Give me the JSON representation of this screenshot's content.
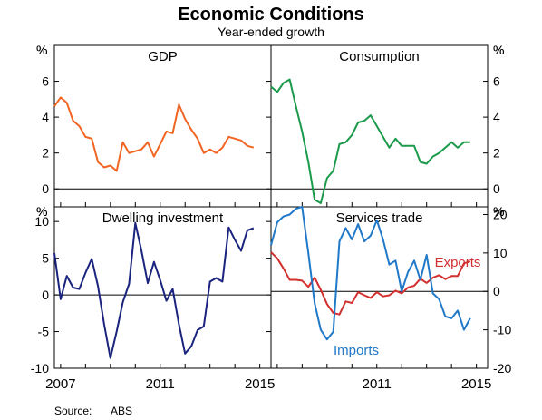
{
  "figure": {
    "title": "Economic Conditions",
    "subtitle": "Year-ended growth",
    "source_label": "Source:",
    "source_value": "ABS",
    "bottom_ticks": [
      "2007",
      "2011",
      "2015"
    ]
  },
  "chart_data": [
    {
      "type": "line",
      "title": "GDP",
      "unit": "%",
      "ylim": [
        -1,
        8
      ],
      "yticks": [
        "0",
        "2",
        "4",
        "6"
      ],
      "grid": false,
      "series": [
        {
          "color": "#f26522",
          "x": [
            2006.75,
            2007.0,
            2007.25,
            2007.5,
            2007.75,
            2008.0,
            2008.25,
            2008.5,
            2008.75,
            2009.0,
            2009.25,
            2009.5,
            2009.75,
            2010.0,
            2010.25,
            2010.5,
            2010.75,
            2011.0,
            2011.25,
            2011.5,
            2011.75,
            2012.0,
            2012.25,
            2012.5,
            2012.75,
            2013.0,
            2013.25,
            2013.5,
            2013.75,
            2014.0,
            2014.25,
            2014.5,
            2014.75
          ],
          "values": [
            4.6,
            5.1,
            4.8,
            3.8,
            3.5,
            2.9,
            2.8,
            1.5,
            1.2,
            1.3,
            1.0,
            2.6,
            2.0,
            2.1,
            2.2,
            2.6,
            1.8,
            2.5,
            3.2,
            3.1,
            4.7,
            3.9,
            3.3,
            2.8,
            2.0,
            2.2,
            2.0,
            2.3,
            2.9,
            2.8,
            2.7,
            2.4,
            2.3
          ]
        }
      ]
    },
    {
      "type": "line",
      "title": "Consumption",
      "unit": "%",
      "ylim": [
        -1,
        8
      ],
      "yticks": [
        "0",
        "2",
        "4",
        "6"
      ],
      "grid": false,
      "series": [
        {
          "color": "#1a9a4a",
          "x": [
            2006.75,
            2007.0,
            2007.25,
            2007.5,
            2007.75,
            2008.0,
            2008.25,
            2008.5,
            2008.75,
            2009.0,
            2009.25,
            2009.5,
            2009.75,
            2010.0,
            2010.25,
            2010.5,
            2010.75,
            2011.0,
            2011.25,
            2011.5,
            2011.75,
            2012.0,
            2012.25,
            2012.5,
            2012.75,
            2013.0,
            2013.25,
            2013.5,
            2013.75,
            2014.0,
            2014.25,
            2014.5,
            2014.75
          ],
          "values": [
            5.7,
            5.4,
            5.9,
            6.1,
            4.6,
            3.2,
            1.5,
            -0.6,
            -0.8,
            0.6,
            1.0,
            2.5,
            2.6,
            3.0,
            3.7,
            3.8,
            4.1,
            3.5,
            2.9,
            2.3,
            2.8,
            2.4,
            2.4,
            2.4,
            1.5,
            1.4,
            1.8,
            2.0,
            2.3,
            2.6,
            2.3,
            2.6,
            2.6
          ]
        }
      ]
    },
    {
      "type": "line",
      "title": "Dwelling investment",
      "unit": "%",
      "ylim": [
        -10,
        12
      ],
      "yticks": [
        "-10",
        "-5",
        "0",
        "5",
        "10"
      ],
      "grid": false,
      "series": [
        {
          "color": "#1a237e",
          "x": [
            2006.75,
            2007.0,
            2007.25,
            2007.5,
            2007.75,
            2008.0,
            2008.25,
            2008.5,
            2008.75,
            2009.0,
            2009.25,
            2009.5,
            2009.75,
            2010.0,
            2010.25,
            2010.5,
            2010.75,
            2011.0,
            2011.25,
            2011.5,
            2011.75,
            2012.0,
            2012.25,
            2012.5,
            2012.75,
            2013.0,
            2013.25,
            2013.5,
            2013.75,
            2014.0,
            2014.25,
            2014.5,
            2014.75
          ],
          "values": [
            5.7,
            -0.6,
            2.6,
            1.0,
            0.8,
            3.0,
            4.9,
            1.2,
            -4.0,
            -8.6,
            -5.0,
            -1.0,
            1.5,
            9.8,
            6.0,
            1.6,
            4.5,
            2.0,
            -0.8,
            0.8,
            -4.0,
            -8.0,
            -7.0,
            -4.8,
            -4.3,
            1.8,
            2.3,
            1.8,
            9.2,
            7.5,
            6.0,
            8.8,
            9.1
          ]
        }
      ]
    },
    {
      "type": "line",
      "title": "Services trade",
      "unit": "%",
      "ylim": [
        -20,
        22
      ],
      "yticks": [
        "-20",
        "-10",
        "0",
        "10",
        "20"
      ],
      "grid": false,
      "annotations": [
        "Exports",
        "Imports"
      ],
      "series": [
        {
          "name": "Exports",
          "color": "#d32f2f",
          "x": [
            2006.75,
            2007.0,
            2007.25,
            2007.5,
            2007.75,
            2008.0,
            2008.25,
            2008.5,
            2008.75,
            2009.0,
            2009.25,
            2009.5,
            2009.75,
            2010.0,
            2010.25,
            2010.5,
            2010.75,
            2011.0,
            2011.25,
            2011.5,
            2011.75,
            2012.0,
            2012.25,
            2012.5,
            2012.75,
            2013.0,
            2013.25,
            2013.5,
            2013.75,
            2014.0,
            2014.25,
            2014.5,
            2014.75
          ],
          "values": [
            10.2,
            8.6,
            6.0,
            3.0,
            3.0,
            2.8,
            1.2,
            3.6,
            0.4,
            -3.3,
            -5.6,
            -6.0,
            -2.6,
            -3.0,
            -0.2,
            -1.0,
            -1.7,
            -0.2,
            -1.3,
            -1.0,
            0.2,
            -0.5,
            1.0,
            1.5,
            3.3,
            2.2,
            3.6,
            4.2,
            3.2,
            4.0,
            4.0,
            7.3,
            7.8
          ]
        },
        {
          "name": "Imports",
          "color": "#1f78c8",
          "x": [
            2006.75,
            2007.0,
            2007.25,
            2007.5,
            2007.75,
            2008.0,
            2008.25,
            2008.5,
            2008.75,
            2009.0,
            2009.25,
            2009.5,
            2009.75,
            2010.0,
            2010.25,
            2010.5,
            2010.75,
            2011.0,
            2011.25,
            2011.5,
            2011.75,
            2012.0,
            2012.25,
            2012.5,
            2012.75,
            2013.0,
            2013.25,
            2013.5,
            2013.75,
            2014.0,
            2014.25,
            2014.5,
            2014.75
          ],
          "values": [
            12.0,
            18.0,
            19.5,
            20.0,
            21.5,
            22.0,
            10.0,
            -3.0,
            -10.0,
            -12.5,
            -10.5,
            13.0,
            16.5,
            13.5,
            17.5,
            13.0,
            14.5,
            18.5,
            13.5,
            7.0,
            8.0,
            0.0,
            5.0,
            8.0,
            3.0,
            9.5,
            -0.5,
            -2.0,
            -6.5,
            -7.0,
            -5.0,
            -10.0,
            -7.0
          ]
        }
      ]
    }
  ]
}
